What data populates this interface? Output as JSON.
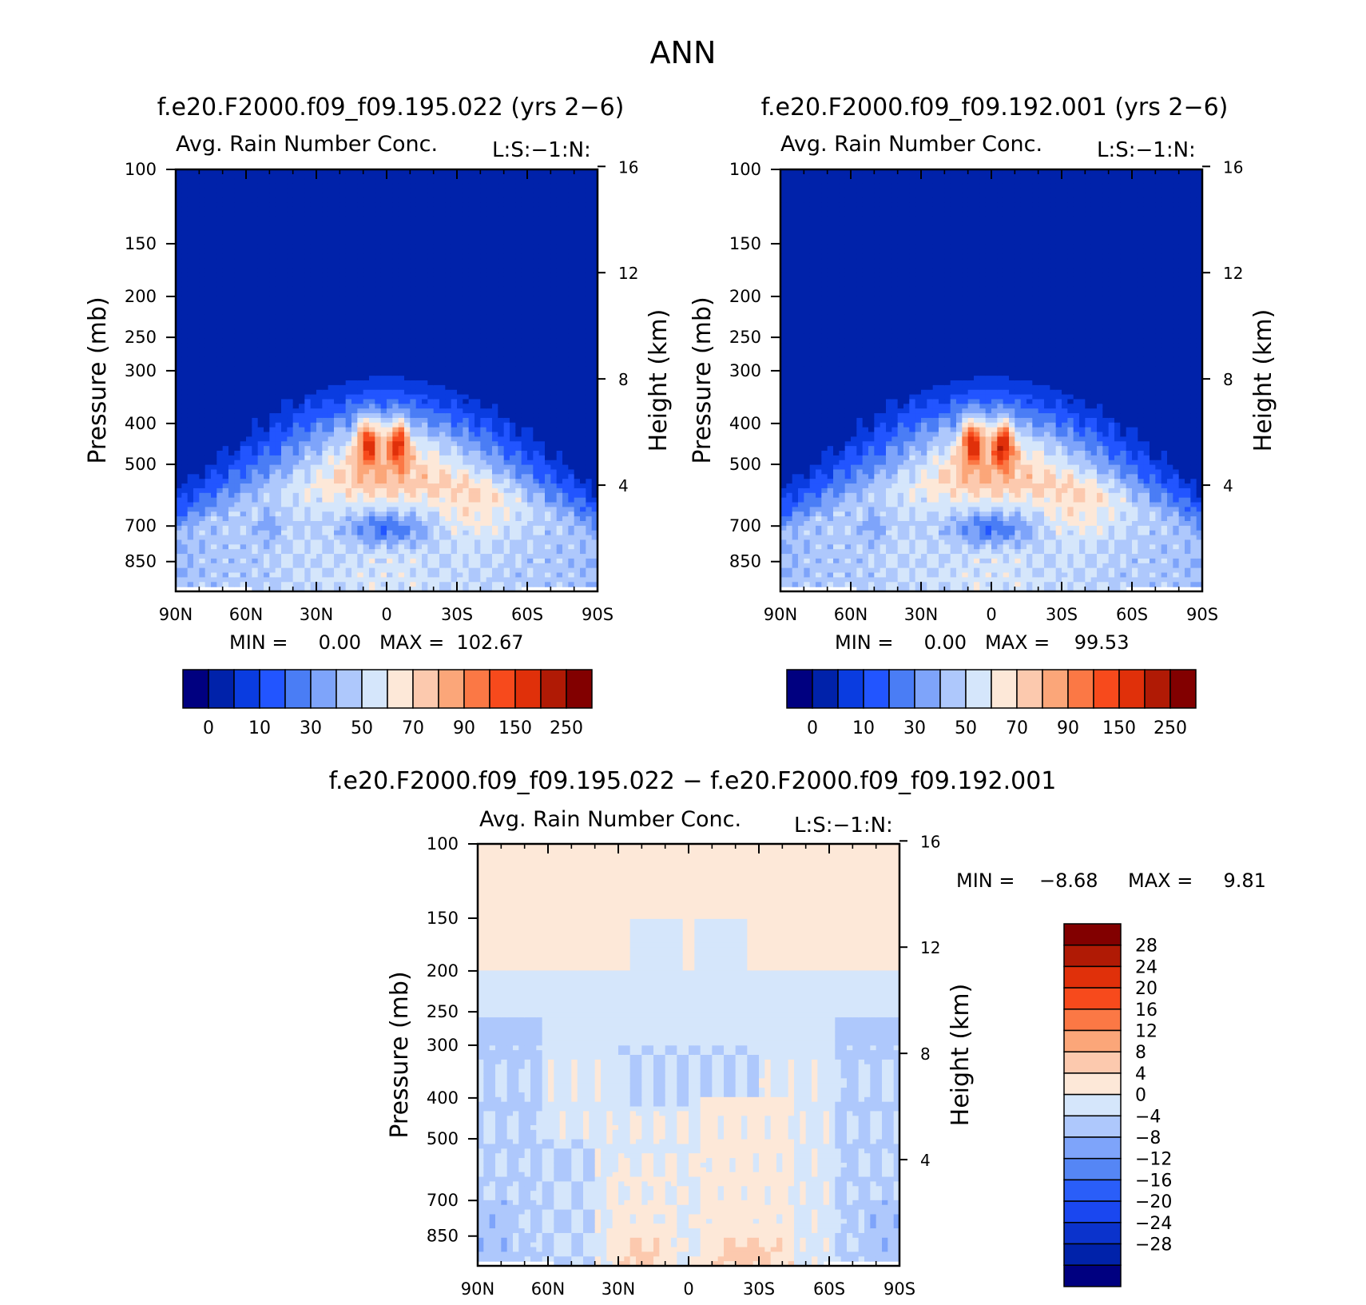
{
  "figure": {
    "title": "ANN"
  },
  "palette": {
    "levels": [
      "#000080",
      "#0022aa",
      "#0a3ce0",
      "#2255ff",
      "#4a7df5",
      "#7ea4fa",
      "#aec8fc",
      "#d5e6fb",
      "#fde8d8",
      "#fcc9ae",
      "#fba679",
      "#fb7845",
      "#f74a1c",
      "#e0300a",
      "#b01a05",
      "#820000"
    ],
    "diff": [
      "#000080",
      "#0022aa",
      "#0b33cc",
      "#1a47f0",
      "#2a5ef9",
      "#5586f5",
      "#7ea4fa",
      "#aec8fc",
      "#d5e6fb",
      "#fde8d8",
      "#fcc9ae",
      "#fba679",
      "#fb7845",
      "#f74a1c",
      "#e0300a",
      "#b01a05",
      "#820000"
    ]
  },
  "panels": [
    {
      "id": "case1",
      "title": "f.e20.F2000.f09_f09.195.022 (yrs 2−6)",
      "subtitle_left": "Avg. Rain Number Conc.",
      "subtitle_right": "L:S:−1:N:",
      "minmax": "MIN =     0.00   MAX =  102.67",
      "contour_field": "case1"
    },
    {
      "id": "case2",
      "title": "f.e20.F2000.f09_f09.192.001 (yrs 2−6)",
      "subtitle_left": "Avg. Rain Number Conc.",
      "subtitle_right": "L:S:−1:N:",
      "minmax": "MIN =     0.00   MAX =    99.53",
      "contour_field": "case2"
    },
    {
      "id": "diff",
      "title": "f.e20.F2000.f09_f09.195.022 − f.e20.F2000.f09_f09.192.001",
      "subtitle_left": "Avg. Rain Number Conc.",
      "subtitle_right": "L:S:−1:N:",
      "minmax_min": "MIN =    −8.68",
      "minmax_max": "MAX =     9.81",
      "contour_field": "diff"
    }
  ],
  "chart_data": [
    {
      "type": "heatmap",
      "title": "f.e20.F2000.f09_f09.195.022 (yrs 2−6)",
      "subtitle": "Avg. Rain Number Conc.",
      "xlabel": "",
      "ylabel": "Pressure (mb)",
      "y2label": "Height (km)",
      "x_ticks": [
        "90N",
        "60N",
        "30N",
        "0",
        "30S",
        "60S",
        "90S"
      ],
      "y_ticks": [
        "100",
        "150",
        "200",
        "250",
        "300",
        "400",
        "500",
        "700",
        "850"
      ],
      "y2_ticks": [
        "16",
        "12",
        "8",
        "4"
      ],
      "x_range": [
        90,
        -90
      ],
      "y_range_mb": [
        100,
        1000
      ],
      "colorbar_labels": [
        "0",
        "10",
        "30",
        "50",
        "70",
        "90",
        "150",
        "250"
      ],
      "min": 0.0,
      "max": 102.67,
      "features": [
        {
          "desc": "low background (level 0-1)",
          "region": "p < 300 mb"
        },
        {
          "desc": "tropical maxima near 450 mb",
          "lat": [
            -8,
            8
          ],
          "level_index": 11
        },
        {
          "desc": "weak minimum near 700 mb",
          "lat": [
            -20,
            10
          ],
          "level_index": 3
        }
      ]
    },
    {
      "type": "heatmap",
      "title": "f.e20.F2000.f09_f09.192.001 (yrs 2−6)",
      "subtitle": "Avg. Rain Number Conc.",
      "ylabel": "Pressure (mb)",
      "y2label": "Height (km)",
      "x_ticks": [
        "90N",
        "60N",
        "30N",
        "0",
        "30S",
        "60S",
        "90S"
      ],
      "y_ticks": [
        "100",
        "150",
        "200",
        "250",
        "300",
        "400",
        "500",
        "700",
        "850"
      ],
      "y2_ticks": [
        "16",
        "12",
        "8",
        "4"
      ],
      "x_range": [
        90,
        -90
      ],
      "y_range_mb": [
        100,
        1000
      ],
      "colorbar_labels": [
        "0",
        "10",
        "30",
        "50",
        "70",
        "90",
        "150",
        "250"
      ],
      "min": 0.0,
      "max": 99.53
    },
    {
      "type": "heatmap",
      "title": "f.e20.F2000.f09_f09.195.022 − f.e20.F2000.f09_f09.192.001",
      "subtitle": "Avg. Rain Number Conc.",
      "ylabel": "Pressure (mb)",
      "y2label": "Height (km)",
      "x_ticks": [
        "90N",
        "60N",
        "30N",
        "0",
        "30S",
        "60S",
        "90S"
      ],
      "y_ticks": [
        "100",
        "150",
        "200",
        "250",
        "300",
        "400",
        "500",
        "700",
        "850"
      ],
      "y2_ticks": [
        "16",
        "12",
        "8",
        "4"
      ],
      "x_range": [
        90,
        -90
      ],
      "y_range_mb": [
        100,
        1000
      ],
      "colorbar_labels": [
        "28",
        "24",
        "20",
        "16",
        "12",
        "8",
        "4",
        "0",
        "−4",
        "−8",
        "−12",
        "−16",
        "−20",
        "−24",
        "−28"
      ],
      "min": -8.68,
      "max": 9.81
    }
  ]
}
